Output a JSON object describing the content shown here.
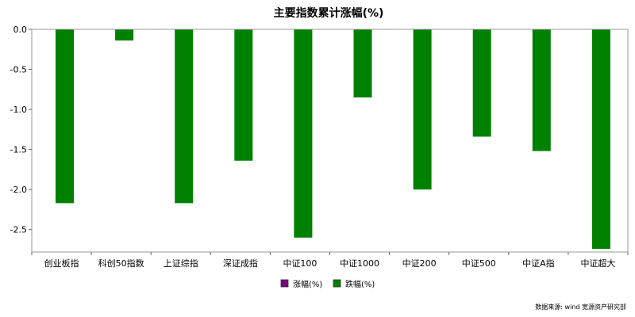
{
  "chart_data": {
    "type": "bar",
    "title": "主要指数累计涨幅(%)",
    "xlabel": "",
    "ylabel": "",
    "categories": [
      "创业板指",
      "科创50指数",
      "上证综指",
      "深证成指",
      "中证100",
      "中证1000",
      "中证200",
      "中证500",
      "中证A指",
      "中证超大"
    ],
    "series": [
      {
        "name": "涨幅(%)",
        "color": "#800080",
        "values": [
          null,
          null,
          null,
          null,
          null,
          null,
          null,
          null,
          null,
          null
        ]
      },
      {
        "name": "跌幅(%)",
        "color": "#008000",
        "values": [
          -2.17,
          -0.14,
          -2.17,
          -1.64,
          -2.6,
          -0.85,
          -2.0,
          -1.34,
          -1.52,
          -2.74
        ]
      }
    ],
    "ylim": [
      -2.78,
      0.0
    ],
    "yticks": [
      "0.0",
      "-0.5",
      "-1.0",
      "-1.5",
      "-2.0",
      "-2.5"
    ],
    "grid": false,
    "legend_position": "bottom-center"
  },
  "source_note": "数据来源:  wind 宽源资产研究部"
}
